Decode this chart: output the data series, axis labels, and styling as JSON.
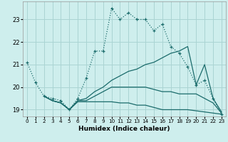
{
  "xlabel": "Humidex (Indice chaleur)",
  "background_color": "#ceeeed",
  "grid_color": "#aad4d3",
  "line_color": "#1a6b6b",
  "xlim": [
    -0.5,
    23.5
  ],
  "ylim": [
    18.7,
    23.8
  ],
  "yticks": [
    19,
    20,
    21,
    22,
    23
  ],
  "xticks": [
    0,
    1,
    2,
    3,
    4,
    5,
    6,
    7,
    8,
    9,
    10,
    11,
    12,
    13,
    14,
    15,
    16,
    17,
    18,
    19,
    20,
    21,
    22,
    23
  ],
  "lines": [
    {
      "x": [
        0,
        1,
        2,
        3,
        4,
        5,
        6,
        7,
        8,
        9,
        10,
        11,
        12,
        13,
        14,
        15,
        16,
        17,
        18,
        19,
        20,
        21,
        22,
        23
      ],
      "y": [
        21.1,
        20.2,
        19.6,
        19.5,
        19.4,
        19.0,
        19.5,
        20.4,
        21.6,
        21.6,
        23.5,
        23.0,
        23.3,
        23.0,
        23.0,
        22.5,
        22.8,
        21.8,
        21.5,
        20.9,
        20.1,
        20.3,
        19.5,
        18.8
      ],
      "style": "dotted",
      "marker": "+"
    },
    {
      "x": [
        2,
        3,
        4,
        5,
        6,
        7,
        8,
        9,
        10,
        11,
        12,
        13,
        14,
        15,
        16,
        17,
        18,
        19,
        20,
        21,
        22,
        23
      ],
      "y": [
        19.6,
        19.4,
        19.3,
        19.0,
        19.4,
        19.5,
        19.8,
        20.0,
        20.3,
        20.5,
        20.7,
        20.8,
        21.0,
        21.1,
        21.3,
        21.5,
        21.6,
        21.8,
        20.1,
        21.0,
        19.5,
        18.9
      ],
      "style": "solid",
      "marker": null
    },
    {
      "x": [
        2,
        3,
        4,
        5,
        6,
        7,
        8,
        9,
        10,
        11,
        12,
        13,
        14,
        15,
        16,
        17,
        18,
        19,
        20,
        21,
        22,
        23
      ],
      "y": [
        19.6,
        19.4,
        19.3,
        19.0,
        19.4,
        19.4,
        19.6,
        19.8,
        20.0,
        20.0,
        20.0,
        20.0,
        20.0,
        19.9,
        19.8,
        19.8,
        19.7,
        19.7,
        19.7,
        19.5,
        19.3,
        18.85
      ],
      "style": "solid",
      "marker": null
    },
    {
      "x": [
        2,
        3,
        4,
        5,
        6,
        7,
        8,
        9,
        10,
        11,
        12,
        13,
        14,
        15,
        16,
        17,
        18,
        19,
        20,
        21,
        22,
        23
      ],
      "y": [
        19.6,
        19.4,
        19.3,
        19.0,
        19.35,
        19.35,
        19.35,
        19.35,
        19.35,
        19.3,
        19.3,
        19.2,
        19.2,
        19.1,
        19.0,
        19.0,
        19.0,
        19.0,
        18.95,
        18.9,
        18.85,
        18.8
      ],
      "style": "solid",
      "marker": null
    }
  ]
}
